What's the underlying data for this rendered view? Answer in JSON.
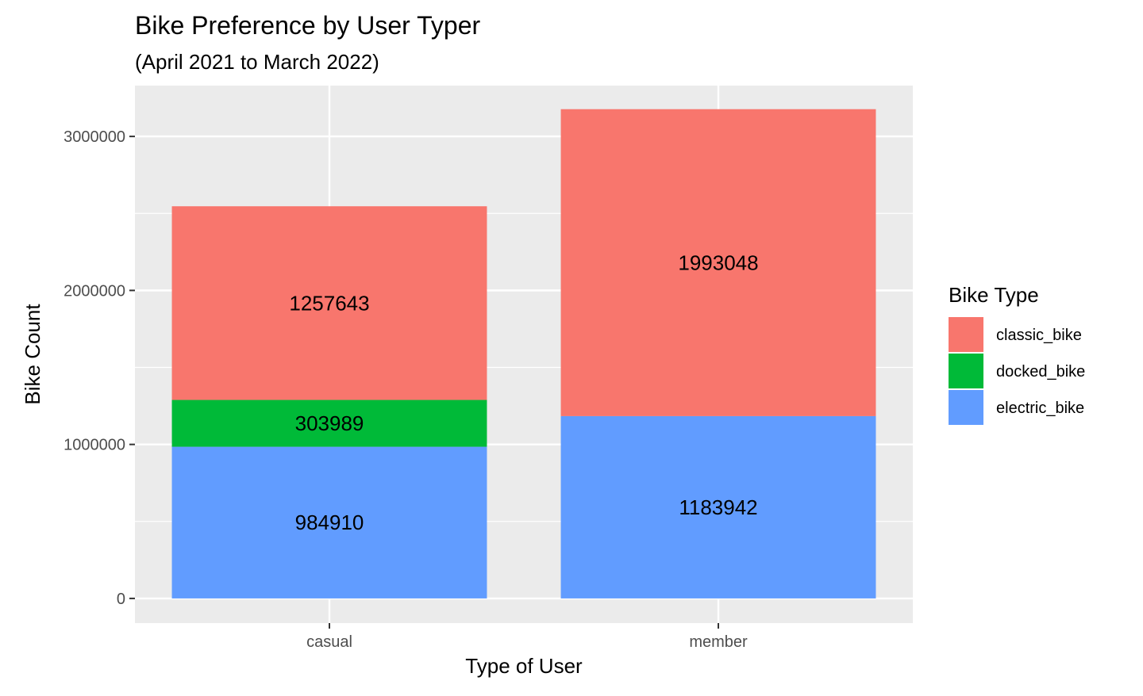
{
  "chart_data": {
    "type": "bar",
    "stacked": true,
    "title": "Bike Preference by User Typer",
    "subtitle": "(April 2021 to March 2022)",
    "xlabel": "Type of User",
    "ylabel": "Bike Count",
    "categories": [
      "casual",
      "member"
    ],
    "series": [
      {
        "name": "electric_bike",
        "color": "#619CFF",
        "values": [
          984910,
          1183942
        ]
      },
      {
        "name": "docked_bike",
        "color": "#00BA38",
        "values": [
          303989,
          0
        ]
      },
      {
        "name": "classic_bike",
        "color": "#F8766D",
        "values": [
          1257643,
          1993048
        ]
      }
    ],
    "ylim": [
      -160000,
      3330000
    ],
    "yticks": [
      0,
      1000000,
      2000000,
      3000000
    ],
    "ytick_labels": [
      "0",
      "1000000",
      "2000000",
      "3000000"
    ],
    "grid": true,
    "legend": {
      "title": "Bike Type",
      "position": "right",
      "items": [
        "classic_bike",
        "docked_bike",
        "electric_bike"
      ]
    }
  }
}
